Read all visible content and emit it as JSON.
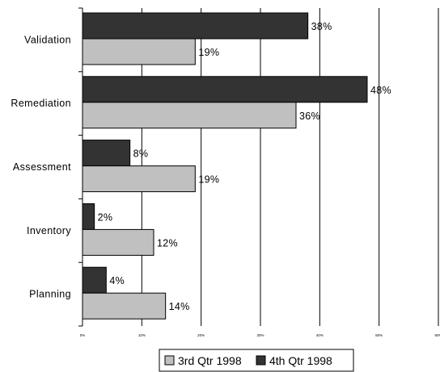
{
  "chart_data": {
    "type": "bar",
    "orientation": "horizontal",
    "categories": [
      "Validation",
      "Remediation",
      "Assessment",
      "Inventory",
      "Planning"
    ],
    "series": [
      {
        "name": "4th Qtr 1998",
        "color": "#333333",
        "values": [
          38,
          48,
          8,
          2,
          4
        ],
        "labels": [
          "38%",
          "48%",
          "8%",
          "2%",
          "4%"
        ]
      },
      {
        "name": "3rd Qtr 1998",
        "color": "#c0c0c0",
        "values": [
          19,
          36,
          19,
          12,
          14
        ],
        "labels": [
          "19%",
          "36%",
          "19%",
          "12%",
          "14%"
        ]
      }
    ],
    "xlim": [
      0,
      60
    ],
    "xticks": [
      0,
      10,
      20,
      30,
      40,
      50,
      60
    ],
    "xtick_labels": [
      "0%",
      "10%",
      "20%",
      "30%",
      "40%",
      "50%",
      "60%"
    ],
    "grid": true,
    "legend": {
      "position": "bottom",
      "entries": [
        "3rd Qtr 1998",
        "4th Qtr 1998"
      ]
    }
  }
}
